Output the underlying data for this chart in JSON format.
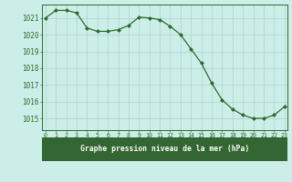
{
  "x": [
    0,
    1,
    2,
    3,
    4,
    5,
    6,
    7,
    8,
    9,
    10,
    11,
    12,
    13,
    14,
    15,
    16,
    17,
    18,
    19,
    20,
    21,
    22,
    23
  ],
  "y": [
    1021.0,
    1021.45,
    1021.45,
    1021.3,
    1020.4,
    1020.2,
    1020.2,
    1020.3,
    1020.55,
    1021.05,
    1021.0,
    1020.9,
    1020.5,
    1020.0,
    1019.15,
    1018.3,
    1017.1,
    1016.1,
    1015.55,
    1015.2,
    1015.0,
    1015.0,
    1015.2,
    1015.7
  ],
  "line_color": "#2d6a2d",
  "marker": "D",
  "marker_size": 2.0,
  "bg_color": "#cceee8",
  "grid_color": "#aad4cc",
  "text_color": "#2d6a2d",
  "bottom_bar_color": "#336633",
  "ylabel_values": [
    1015,
    1016,
    1017,
    1018,
    1019,
    1020,
    1021
  ],
  "xlabel_values": [
    0,
    1,
    2,
    3,
    4,
    5,
    6,
    7,
    8,
    9,
    10,
    11,
    12,
    13,
    14,
    15,
    16,
    17,
    18,
    19,
    20,
    21,
    22,
    23
  ],
  "ylim": [
    1014.3,
    1021.8
  ],
  "xlim": [
    -0.3,
    23.3
  ],
  "xlabel": "Graphe pression niveau de la mer (hPa)"
}
